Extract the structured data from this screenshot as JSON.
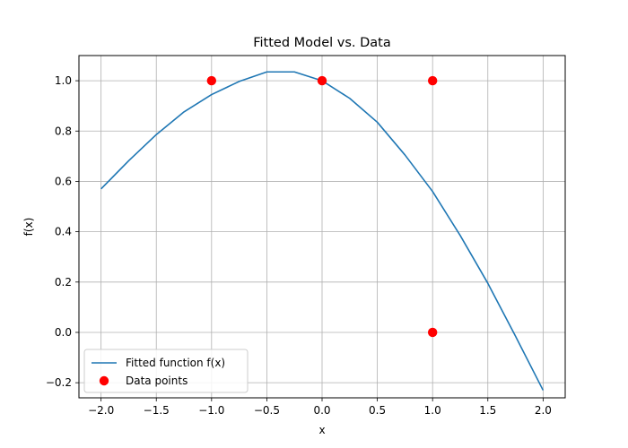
{
  "chart_data": {
    "type": "line",
    "title": "Fitted Model vs. Data",
    "xlabel": "x",
    "ylabel": "f(x)",
    "xlim": [
      -2.2,
      2.2
    ],
    "ylim": [
      -0.26,
      1.1
    ],
    "grid": true,
    "legend_position": "lower-left",
    "x_ticks": [
      -2.0,
      -1.5,
      -1.0,
      -0.5,
      0.0,
      0.5,
      1.0,
      1.5,
      2.0
    ],
    "x_tick_labels": [
      "−2.0",
      "−1.5",
      "−1.0",
      "−0.5",
      "0.0",
      "0.5",
      "1.0",
      "1.5",
      "2.0"
    ],
    "y_ticks": [
      -0.2,
      0.0,
      0.2,
      0.4,
      0.6,
      0.8,
      1.0
    ],
    "y_tick_labels": [
      "−0.2",
      "0.0",
      "0.2",
      "0.4",
      "0.6",
      "0.8",
      "1.0"
    ],
    "series": [
      {
        "name": "Fitted function f(x)",
        "type": "line",
        "color": "#1f77b4",
        "x": [
          -2.0,
          -1.75,
          -1.5,
          -1.25,
          -1.0,
          -0.75,
          -0.5,
          -0.25,
          0.0,
          0.25,
          0.5,
          0.75,
          1.0,
          1.25,
          1.5,
          1.75,
          2.0
        ],
        "y": [
          0.57,
          0.682,
          0.786,
          0.876,
          0.945,
          0.997,
          1.035,
          1.035,
          1.0,
          0.93,
          0.835,
          0.705,
          0.56,
          0.385,
          0.195,
          -0.015,
          -0.23
        ]
      },
      {
        "name": "Data points",
        "type": "scatter",
        "color": "#ff0000",
        "x": [
          -1.0,
          0.0,
          1.0,
          1.0
        ],
        "y": [
          1.0,
          1.0,
          1.0,
          0.0
        ]
      }
    ]
  }
}
